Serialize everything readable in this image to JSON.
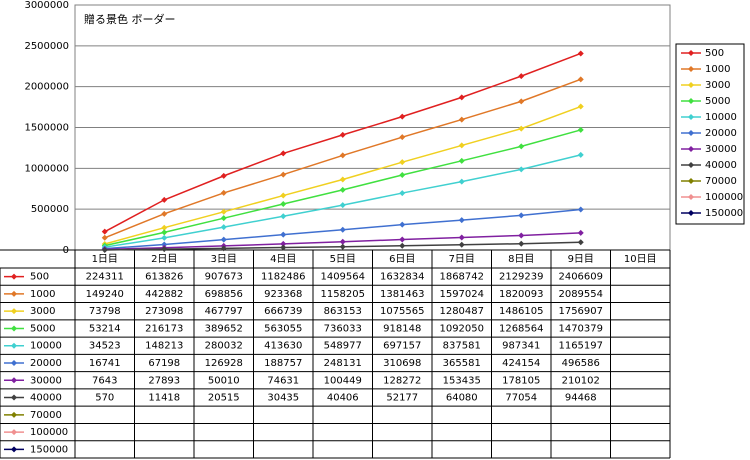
{
  "chart_data": {
    "type": "line",
    "title": "贈る景色 ボーダー",
    "categories": [
      "1日目",
      "2日目",
      "3日目",
      "4日目",
      "5日目",
      "6日目",
      "7日目",
      "8日目",
      "9日目",
      "10日目"
    ],
    "ylim": [
      0,
      3000000
    ],
    "yticks": [
      0,
      500000,
      1000000,
      1500000,
      2000000,
      2500000,
      3000000
    ],
    "grid": true,
    "legend": "right",
    "series": [
      {
        "name": "500",
        "color": "#e02020",
        "values": [
          224311,
          613826,
          907673,
          1182486,
          1409564,
          1632834,
          1868742,
          2129239,
          2406609,
          null
        ]
      },
      {
        "name": "1000",
        "color": "#e07828",
        "values": [
          149240,
          442882,
          698856,
          923368,
          1158205,
          1381463,
          1597024,
          1820093,
          2089554,
          null
        ]
      },
      {
        "name": "3000",
        "color": "#f0d020",
        "values": [
          73798,
          273098,
          467797,
          666739,
          863153,
          1075565,
          1280487,
          1486105,
          1756907,
          null
        ]
      },
      {
        "name": "5000",
        "color": "#40e040",
        "values": [
          53214,
          216173,
          389652,
          563055,
          736033,
          918148,
          1092050,
          1268564,
          1470379,
          null
        ]
      },
      {
        "name": "10000",
        "color": "#40d0d0",
        "values": [
          34523,
          148213,
          280032,
          413630,
          548977,
          697157,
          837581,
          987341,
          1165197,
          null
        ]
      },
      {
        "name": "20000",
        "color": "#4070d0",
        "values": [
          16741,
          67198,
          126928,
          188757,
          248131,
          310698,
          365581,
          424154,
          496586,
          null
        ]
      },
      {
        "name": "30000",
        "color": "#8020a0",
        "values": [
          7643,
          27893,
          50010,
          74631,
          100449,
          128272,
          153435,
          178105,
          210102,
          null
        ]
      },
      {
        "name": "40000",
        "color": "#404040",
        "values": [
          570,
          11418,
          20515,
          30435,
          40406,
          52177,
          64080,
          77054,
          94468,
          null
        ]
      },
      {
        "name": "70000",
        "color": "#808000",
        "values": [
          null,
          null,
          null,
          null,
          null,
          null,
          null,
          null,
          null,
          null
        ]
      },
      {
        "name": "100000",
        "color": "#f09090",
        "values": [
          null,
          null,
          null,
          null,
          null,
          null,
          null,
          null,
          null,
          null
        ]
      },
      {
        "name": "150000",
        "color": "#000060",
        "values": [
          null,
          null,
          null,
          null,
          null,
          null,
          null,
          null,
          null,
          null
        ]
      }
    ]
  }
}
